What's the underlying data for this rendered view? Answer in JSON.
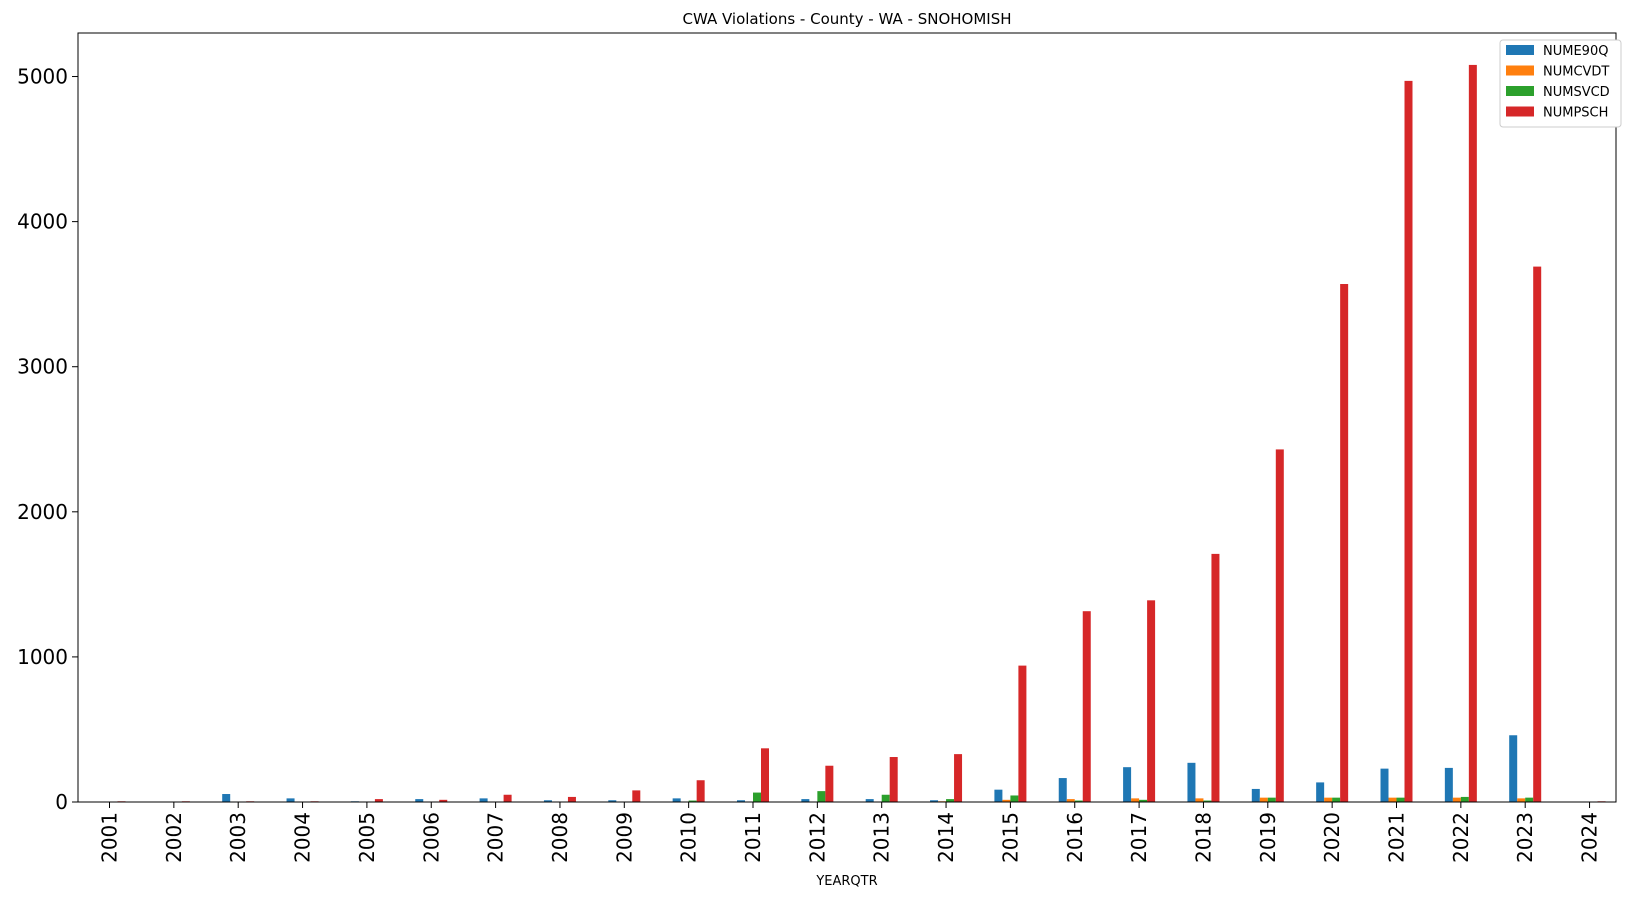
{
  "chart_data": {
    "type": "bar",
    "title": "CWA Violations - County - WA - SNOHOMISH",
    "xlabel": "YEARQTR",
    "ylabel": "",
    "ylim": [
      0,
      5300
    ],
    "yticks": [
      0,
      1000,
      2000,
      3000,
      4000,
      5000
    ],
    "grid": false,
    "legend_position": "top-right",
    "categories": [
      "2001",
      "2002",
      "2003",
      "2004",
      "2005",
      "2006",
      "2007",
      "2008",
      "2009",
      "2010",
      "2011",
      "2012",
      "2013",
      "2014",
      "2015",
      "2016",
      "2017",
      "2018",
      "2019",
      "2020",
      "2021",
      "2022",
      "2023",
      "2024"
    ],
    "series": [
      {
        "name": "NUME90Q",
        "color": "#1f77b4",
        "values": [
          0,
          3,
          55,
          25,
          5,
          20,
          25,
          12,
          12,
          25,
          12,
          20,
          20,
          12,
          85,
          165,
          240,
          270,
          90,
          135,
          230,
          235,
          460,
          0
        ]
      },
      {
        "name": "NUMCVDT",
        "color": "#ff7f0e",
        "values": [
          0,
          0,
          0,
          0,
          0,
          0,
          0,
          0,
          0,
          0,
          0,
          0,
          0,
          5,
          15,
          20,
          25,
          25,
          30,
          30,
          30,
          30,
          25,
          0
        ]
      },
      {
        "name": "NUMSVCD",
        "color": "#2ca02c",
        "values": [
          0,
          0,
          0,
          0,
          0,
          0,
          0,
          0,
          0,
          10,
          65,
          75,
          50,
          20,
          45,
          10,
          15,
          10,
          30,
          30,
          30,
          35,
          30,
          0
        ]
      },
      {
        "name": "NUMPSCH",
        "color": "#d62728",
        "values": [
          5,
          5,
          5,
          5,
          20,
          15,
          50,
          35,
          80,
          150,
          370,
          250,
          310,
          330,
          940,
          1315,
          1390,
          1710,
          2430,
          3570,
          4970,
          5080,
          3690,
          5
        ]
      }
    ]
  }
}
